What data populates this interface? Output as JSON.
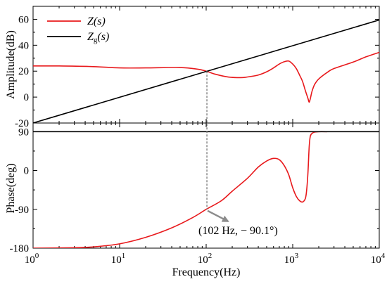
{
  "chart_data": {
    "type": "line",
    "xscale": "log",
    "xlim": [
      1,
      10000
    ],
    "xticks": [
      1,
      10,
      100,
      1000,
      10000
    ],
    "xtick_labels": [
      {
        "base": "10",
        "exp": "0"
      },
      {
        "base": "10",
        "exp": "1"
      },
      {
        "base": "10",
        "exp": "2"
      },
      {
        "base": "10",
        "exp": "3"
      },
      {
        "base": "10",
        "exp": "4"
      }
    ],
    "xlabel": "Frequency(Hz)",
    "subplots": [
      {
        "name": "amplitude",
        "ylabel": "Amplitude(dB)",
        "ylim": [
          -20,
          70
        ],
        "yticks": [
          -20,
          0,
          20,
          40,
          60
        ],
        "ytick_labels": [
          "-20",
          "0",
          "20",
          "40",
          "60"
        ],
        "legend": {
          "placement": "top-left",
          "entries": [
            {
              "main": "Z",
              "sub": "",
              "arg": "(s)",
              "color": "#e8191c"
            },
            {
              "main": "Z",
              "sub": "g",
              "arg": "(s)",
              "color": "#000000"
            }
          ]
        },
        "series": [
          {
            "color": "#e8191c",
            "x": [
              1,
              2,
              5,
              10,
              20,
              50,
              80,
              100,
              130,
              180,
              250,
              300,
              400,
              500,
              600,
              700,
              800,
              900,
              1000,
              1100,
              1200,
              1300,
              1400,
              1500,
              1550,
              1600,
              1650,
              1700,
              1800,
              2000,
              2500,
              3000,
              5000,
              7000,
              10000
            ],
            "y": [
              24,
              24,
              23.5,
              22.5,
              22.5,
              22.8,
              21.5,
              20,
              17.5,
              15.5,
              15,
              15.5,
              17,
              19.5,
              22.5,
              25.5,
              27.3,
              27.8,
              25.5,
              22,
              17,
              12,
              5,
              -1,
              -4,
              -1,
              3,
              6,
              10,
              14,
              19,
              22,
              27,
              31,
              34.5
            ]
          },
          {
            "color": "#000000",
            "x": [
              1,
              10000
            ],
            "y": [
              -20,
              59.5
            ]
          }
        ]
      },
      {
        "name": "phase",
        "ylabel": "Phase(deg)",
        "ylim": [
          -180,
          110
        ],
        "yticks": [
          -180,
          -90,
          0,
          90
        ],
        "ytick_labels": [
          "-180",
          "-90",
          "0",
          "90"
        ],
        "series": [
          {
            "color": "#e8191c",
            "x": [
              1,
              3,
              5,
              10,
              20,
              40,
              70,
              100,
              150,
              200,
              300,
              400,
              500,
              600,
              700,
              800,
              900,
              1000,
              1100,
              1200,
              1300,
              1400,
              1450,
              1500,
              1550,
              1600,
              1700,
              1800,
              2000,
              2500
            ],
            "y": [
              -180,
              -179,
              -177,
              -170,
              -155,
              -133,
              -109,
              -90.1,
              -70,
              -48,
              -18,
              8,
              22,
              28,
              25,
              11,
              -10,
              -40,
              -60,
              -70,
              -73,
              -65,
              -45,
              -5,
              55,
              80,
              87,
              89,
              90,
              90
            ]
          },
          {
            "color": "#000000",
            "x": [
              1,
              10000
            ],
            "y": [
              90,
              90
            ]
          }
        ],
        "annotation": {
          "text": "(102 Hz, − 90.1°)",
          "point": {
            "x": 102,
            "y": -90.1
          }
        }
      }
    ],
    "crossover_marker": {
      "x": 102,
      "amplitude_y": 20,
      "style": "dashed",
      "color": "#777777"
    }
  }
}
